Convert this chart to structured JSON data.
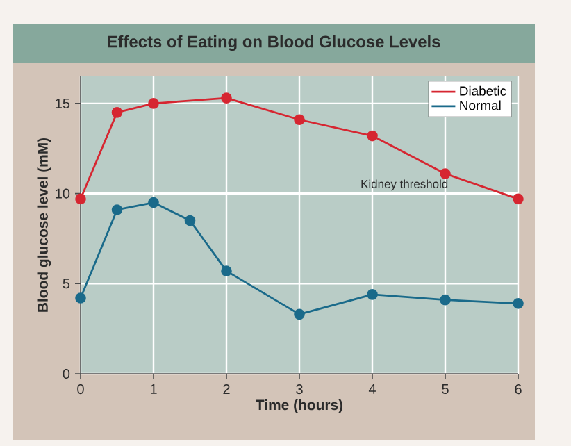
{
  "chart_data": {
    "type": "line",
    "title": "Effects of Eating on Blood Glucose Levels",
    "xlabel": "Time (hours)",
    "ylabel": "Blood glucose level (mM)",
    "xlim": [
      0,
      6
    ],
    "xticks": [
      0,
      1,
      2,
      3,
      4,
      5,
      6
    ],
    "ylim": [
      0,
      16.5
    ],
    "yticks": [
      0,
      5,
      10,
      15
    ],
    "grid": true,
    "legend": "top right",
    "marker": "circle",
    "line_style": "solid",
    "ref_lines": [
      {
        "axis": "y",
        "value": 10,
        "label": "Kidney threshold",
        "color": "#ffffff"
      }
    ],
    "series": [
      {
        "name": "Diabetic",
        "color": "#d62631",
        "x": [
          0,
          0.5,
          1,
          2,
          3,
          4,
          5,
          6
        ],
        "values": [
          9.7,
          14.5,
          15,
          15.3,
          14.1,
          13.2,
          11.1,
          9.7
        ]
      },
      {
        "name": "Normal",
        "color": "#1a6a8a",
        "x": [
          0,
          0.5,
          1,
          1.5,
          2,
          3,
          4,
          5,
          6
        ],
        "values": [
          4.2,
          9.1,
          9.5,
          8.5,
          5.7,
          3.3,
          4.4,
          4.1,
          3.9
        ]
      }
    ]
  }
}
